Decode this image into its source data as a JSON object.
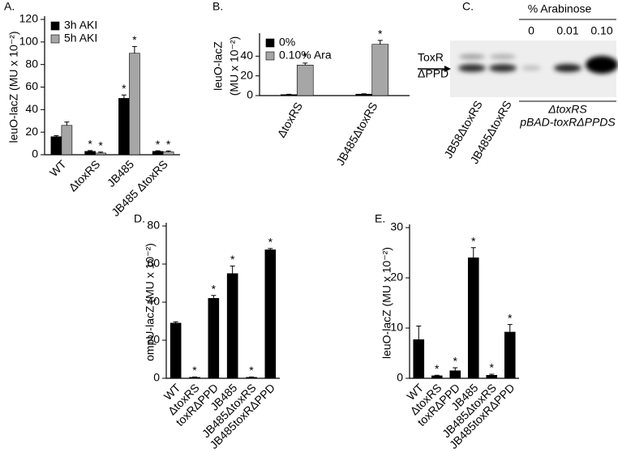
{
  "chart_data": [
    {
      "type": "bar",
      "title": "A.",
      "y_label": "leuO-lacZ (MU x 10⁻²)",
      "categories": [
        "WT",
        "ΔtoxRS",
        "JB485",
        "JB485 ΔtoxRS"
      ],
      "series": [
        {
          "name": "3h AKI",
          "color": "#000000",
          "values": [
            16,
            3,
            50,
            3
          ],
          "errors": [
            1,
            0.7,
            3,
            0.5
          ],
          "significance": [
            null,
            "*",
            "*",
            "*"
          ]
        },
        {
          "name": "5h AKI",
          "color": "#a6a6a6",
          "values": [
            26,
            1.5,
            90,
            2.5
          ],
          "errors": [
            3,
            0.8,
            6,
            0.8
          ],
          "significance": [
            null,
            "*",
            "*",
            "*"
          ]
        }
      ],
      "ylim": [
        0,
        120
      ],
      "yticks": [
        0,
        20,
        40,
        60,
        80,
        100,
        120
      ],
      "legend": "top-left"
    },
    {
      "type": "bar",
      "title": "B.",
      "y_label": [
        "leuO-lacZ",
        "(MU x 10⁻²)"
      ],
      "categories": [
        "ΔtoxRS",
        "JB485ΔtoxRS"
      ],
      "series": [
        {
          "name": "0%",
          "color": "#000000",
          "values": [
            1,
            1.5
          ],
          "errors": [
            0.3,
            0.3
          ],
          "significance": [
            null,
            null
          ]
        },
        {
          "name": "0.10% Ara",
          "color": "#a6a6a6",
          "values": [
            31,
            52
          ],
          "errors": [
            2,
            4
          ],
          "significance": [
            "*",
            "*"
          ]
        }
      ],
      "ylim": [
        0,
        60
      ],
      "yticks": [
        0,
        20,
        40
      ],
      "legend": "top-left"
    },
    {
      "type": "bar",
      "title": "D.",
      "y_label": "ompU-lacZ (MU x 10⁻²)",
      "categories": [
        "WT",
        "ΔtoxRS",
        "toxRΔPPD",
        "JB485",
        "JB485ΔtoxRS",
        "JB485toxRΔPPD"
      ],
      "color": "#000000",
      "values": [
        29,
        0.5,
        42,
        55,
        0.5,
        67.5
      ],
      "errors": [
        0.7,
        0.2,
        1.5,
        4,
        0.2,
        0.7
      ],
      "significance": [
        null,
        "*",
        "*",
        "*",
        "*",
        "*"
      ],
      "ylim": [
        0,
        80
      ],
      "yticks": [
        0,
        20,
        40,
        60,
        80
      ]
    },
    {
      "type": "bar",
      "title": "E.",
      "y_label": "leuO-lacZ (MU x 10⁻²)",
      "categories": [
        "WT",
        "ΔtoxRS",
        "toxRΔPPD",
        "JB485",
        "JB485ΔtoxRS",
        "JB485toxRΔPPD"
      ],
      "color": "#000000",
      "values": [
        7.7,
        0.5,
        1.5,
        24,
        0.6,
        9.2
      ],
      "errors": [
        2.7,
        0.1,
        0.6,
        2,
        0.2,
        1.5
      ],
      "significance": [
        null,
        "*",
        "*",
        "*",
        "*",
        "*"
      ],
      "ylim": [
        0,
        30
      ],
      "yticks": [
        0,
        10,
        20,
        30
      ]
    }
  ],
  "blot": {
    "title": "C.",
    "header": "% Arabinose",
    "lanes": [
      "0",
      "0.01",
      "0.10"
    ],
    "band_labels": [
      "ToxR",
      "ΔPPD"
    ],
    "strains": [
      "JB58ΔtoxRS",
      "JB485ΔtoxRS"
    ],
    "group_label": [
      "ΔtoxRS",
      "pBAD-toxRΔPPDS"
    ]
  }
}
